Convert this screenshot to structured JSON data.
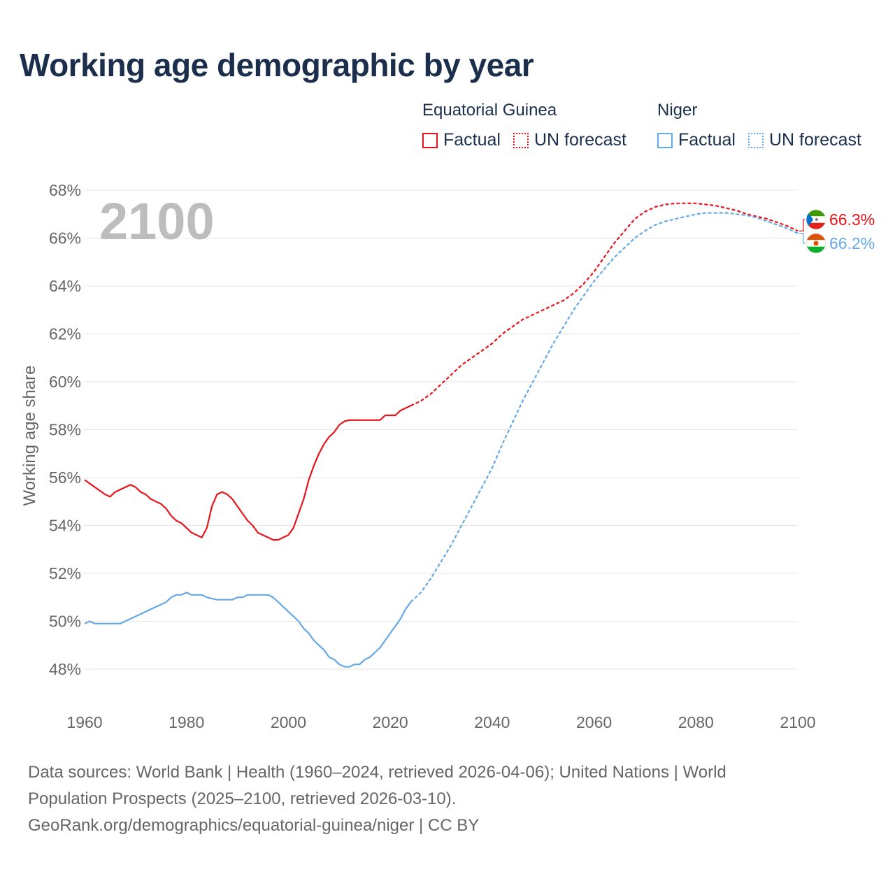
{
  "title": "Working age demographic by year",
  "legend": {
    "groups": [
      {
        "name": "Equatorial Guinea",
        "color": "#e8141c",
        "factual_label": "Factual",
        "forecast_label": "UN forecast"
      },
      {
        "name": "Niger",
        "color": "#64a8e6",
        "factual_label": "Factual",
        "forecast_label": "UN forecast"
      }
    ]
  },
  "footer": {
    "line1": "Data sources: World Bank | Health (1960–2024, retrieved 2026-04-06); United Nations | World",
    "line2": "Population Prospects (2025–2100, retrieved 2026-03-10).",
    "line3": "GeoRank.org/demographics/equatorial-guinea/niger | CC BY"
  },
  "chart_data": {
    "type": "line",
    "title": "Working age demographic by year",
    "xlabel": "",
    "ylabel": "Working age share",
    "xlim": [
      1960,
      2100
    ],
    "ylim": [
      47,
      68
    ],
    "x_ticks": [
      1960,
      1980,
      2000,
      2020,
      2040,
      2060,
      2080,
      2100
    ],
    "x_tick_labels": [
      "1960",
      "1980",
      "2000",
      "2020",
      "2040",
      "2060",
      "2080",
      "2100"
    ],
    "y_ticks": [
      48,
      50,
      52,
      54,
      56,
      58,
      60,
      62,
      64,
      66,
      68
    ],
    "y_tick_labels": [
      "48%",
      "50%",
      "52%",
      "54%",
      "56%",
      "58%",
      "60%",
      "62%",
      "64%",
      "66%",
      "68%"
    ],
    "grid": true,
    "year_watermark": "2100",
    "factual_end_year": 2024,
    "series": [
      {
        "name": "Equatorial Guinea",
        "color": "#e8141c",
        "end_label": "66.3%",
        "flag": "equatorial-guinea-flag",
        "points": [
          [
            1960,
            55.9
          ],
          [
            1962,
            55.6
          ],
          [
            1964,
            55.3
          ],
          [
            1965,
            55.2
          ],
          [
            1966,
            55.4
          ],
          [
            1968,
            55.6
          ],
          [
            1969,
            55.7
          ],
          [
            1970,
            55.6
          ],
          [
            1971,
            55.4
          ],
          [
            1972,
            55.3
          ],
          [
            1973,
            55.1
          ],
          [
            1975,
            54.9
          ],
          [
            1976,
            54.7
          ],
          [
            1977,
            54.4
          ],
          [
            1978,
            54.2
          ],
          [
            1979,
            54.1
          ],
          [
            1980,
            53.9
          ],
          [
            1981,
            53.7
          ],
          [
            1983,
            53.5
          ],
          [
            1984,
            53.9
          ],
          [
            1985,
            54.8
          ],
          [
            1986,
            55.3
          ],
          [
            1987,
            55.4
          ],
          [
            1988,
            55.3
          ],
          [
            1989,
            55.1
          ],
          [
            1990,
            54.8
          ],
          [
            1992,
            54.2
          ],
          [
            1993,
            54.0
          ],
          [
            1994,
            53.7
          ],
          [
            1996,
            53.5
          ],
          [
            1997,
            53.4
          ],
          [
            1998,
            53.4
          ],
          [
            1999,
            53.5
          ],
          [
            2000,
            53.6
          ],
          [
            2001,
            53.9
          ],
          [
            2002,
            54.5
          ],
          [
            2003,
            55.1
          ],
          [
            2004,
            55.9
          ],
          [
            2005,
            56.5
          ],
          [
            2006,
            57.0
          ],
          [
            2007,
            57.4
          ],
          [
            2008,
            57.7
          ],
          [
            2009,
            57.9
          ],
          [
            2010,
            58.2
          ],
          [
            2011,
            58.35
          ],
          [
            2012,
            58.4
          ],
          [
            2013,
            58.4
          ],
          [
            2015,
            58.4
          ],
          [
            2017,
            58.4
          ],
          [
            2018,
            58.4
          ],
          [
            2019,
            58.6
          ],
          [
            2021,
            58.6
          ],
          [
            2022,
            58.8
          ],
          [
            2024,
            59.0
          ],
          [
            2026,
            59.2
          ],
          [
            2028,
            59.5
          ],
          [
            2030,
            59.9
          ],
          [
            2032,
            60.3
          ],
          [
            2034,
            60.7
          ],
          [
            2036,
            61.0
          ],
          [
            2038,
            61.3
          ],
          [
            2040,
            61.6
          ],
          [
            2042,
            62.0
          ],
          [
            2044,
            62.3
          ],
          [
            2046,
            62.6
          ],
          [
            2048,
            62.8
          ],
          [
            2050,
            63.0
          ],
          [
            2052,
            63.2
          ],
          [
            2054,
            63.4
          ],
          [
            2056,
            63.7
          ],
          [
            2058,
            64.1
          ],
          [
            2060,
            64.6
          ],
          [
            2062,
            65.2
          ],
          [
            2064,
            65.8
          ],
          [
            2066,
            66.3
          ],
          [
            2068,
            66.8
          ],
          [
            2070,
            67.1
          ],
          [
            2072,
            67.3
          ],
          [
            2074,
            67.4
          ],
          [
            2076,
            67.45
          ],
          [
            2078,
            67.45
          ],
          [
            2080,
            67.45
          ],
          [
            2082,
            67.4
          ],
          [
            2084,
            67.35
          ],
          [
            2086,
            67.25
          ],
          [
            2088,
            67.15
          ],
          [
            2090,
            67.0
          ],
          [
            2092,
            66.9
          ],
          [
            2094,
            66.8
          ],
          [
            2096,
            66.65
          ],
          [
            2098,
            66.5
          ],
          [
            2100,
            66.3
          ]
        ]
      },
      {
        "name": "Niger",
        "color": "#64a8e6",
        "end_label": "66.2%",
        "flag": "niger-flag",
        "points": [
          [
            1960,
            49.9
          ],
          [
            1961,
            50.0
          ],
          [
            1962,
            49.9
          ],
          [
            1964,
            49.9
          ],
          [
            1966,
            49.9
          ],
          [
            1967,
            49.9
          ],
          [
            1968,
            50.0
          ],
          [
            1970,
            50.2
          ],
          [
            1972,
            50.4
          ],
          [
            1974,
            50.6
          ],
          [
            1976,
            50.8
          ],
          [
            1977,
            51.0
          ],
          [
            1978,
            51.1
          ],
          [
            1979,
            51.1
          ],
          [
            1980,
            51.2
          ],
          [
            1981,
            51.1
          ],
          [
            1983,
            51.1
          ],
          [
            1984,
            51.0
          ],
          [
            1986,
            50.9
          ],
          [
            1988,
            50.9
          ],
          [
            1989,
            50.9
          ],
          [
            1990,
            51.0
          ],
          [
            1991,
            51.0
          ],
          [
            1992,
            51.1
          ],
          [
            1994,
            51.1
          ],
          [
            1996,
            51.1
          ],
          [
            1997,
            51.0
          ],
          [
            1998,
            50.8
          ],
          [
            1999,
            50.6
          ],
          [
            2000,
            50.4
          ],
          [
            2001,
            50.2
          ],
          [
            2002,
            50.0
          ],
          [
            2003,
            49.7
          ],
          [
            2004,
            49.5
          ],
          [
            2005,
            49.2
          ],
          [
            2006,
            49.0
          ],
          [
            2007,
            48.8
          ],
          [
            2008,
            48.5
          ],
          [
            2009,
            48.4
          ],
          [
            2010,
            48.2
          ],
          [
            2011,
            48.1
          ],
          [
            2012,
            48.1
          ],
          [
            2013,
            48.2
          ],
          [
            2014,
            48.2
          ],
          [
            2015,
            48.4
          ],
          [
            2016,
            48.5
          ],
          [
            2017,
            48.7
          ],
          [
            2018,
            48.9
          ],
          [
            2019,
            49.2
          ],
          [
            2020,
            49.5
          ],
          [
            2021,
            49.8
          ],
          [
            2022,
            50.1
          ],
          [
            2023,
            50.5
          ],
          [
            2024,
            50.8
          ],
          [
            2025,
            51.0
          ],
          [
            2026,
            51.2
          ],
          [
            2028,
            51.8
          ],
          [
            2030,
            52.5
          ],
          [
            2032,
            53.2
          ],
          [
            2034,
            54.0
          ],
          [
            2036,
            54.8
          ],
          [
            2038,
            55.6
          ],
          [
            2040,
            56.4
          ],
          [
            2042,
            57.4
          ],
          [
            2044,
            58.3
          ],
          [
            2046,
            59.2
          ],
          [
            2048,
            60.0
          ],
          [
            2050,
            60.8
          ],
          [
            2052,
            61.6
          ],
          [
            2054,
            62.3
          ],
          [
            2056,
            63.0
          ],
          [
            2058,
            63.6
          ],
          [
            2060,
            64.2
          ],
          [
            2062,
            64.7
          ],
          [
            2064,
            65.2
          ],
          [
            2066,
            65.6
          ],
          [
            2068,
            66.0
          ],
          [
            2070,
            66.3
          ],
          [
            2072,
            66.55
          ],
          [
            2074,
            66.7
          ],
          [
            2076,
            66.8
          ],
          [
            2078,
            66.9
          ],
          [
            2080,
            67.0
          ],
          [
            2082,
            67.05
          ],
          [
            2084,
            67.05
          ],
          [
            2086,
            67.05
          ],
          [
            2088,
            67.0
          ],
          [
            2090,
            66.95
          ],
          [
            2092,
            66.85
          ],
          [
            2094,
            66.7
          ],
          [
            2096,
            66.55
          ],
          [
            2098,
            66.4
          ],
          [
            2100,
            66.2
          ]
        ]
      }
    ]
  }
}
